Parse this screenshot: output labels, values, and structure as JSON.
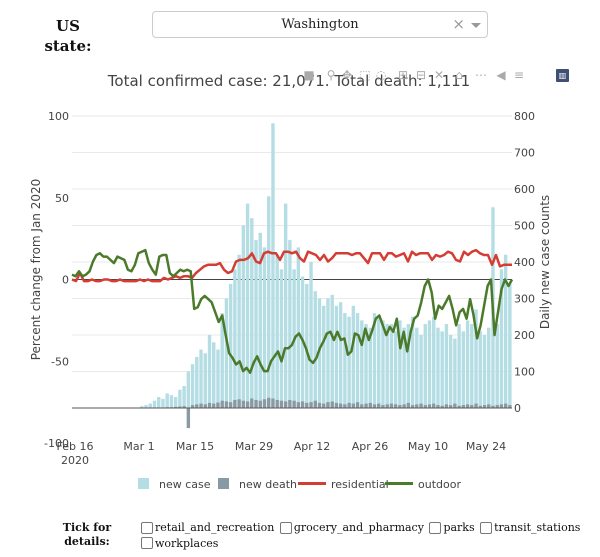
{
  "controls": {
    "state_label": "US state:",
    "state_value": "Washington",
    "clear_glyph": "×"
  },
  "chart_title": "Total confirmed case: 21,071. Total death: 1,111",
  "modebar": {
    "icons": [
      "camera-icon",
      "zoom-icon",
      "pan-icon",
      "box-select-icon",
      "lasso-icon",
      "zoom-in-icon",
      "zoom-out-icon",
      "autoscale-icon",
      "reset-axes-icon",
      "spike-lines-icon",
      "hover-closest-icon",
      "hover-compare-icon",
      "plotly-logo-icon"
    ]
  },
  "legend": {
    "new_case": "new case",
    "new_death": "new death",
    "residential": "residential",
    "outdoor": "outdoor"
  },
  "details": {
    "label": "Tick for details:",
    "options": [
      "retail_and_recreation",
      "grocery_and_pharmacy",
      "parks",
      "transit_stations",
      "workplaces"
    ]
  },
  "colors": {
    "case_bar": "#b4dde4",
    "death_bar": "#8a9aa5",
    "residential": "#d43d33",
    "outdoor": "#4c7a2b"
  },
  "chart_data": {
    "type": "bar+line",
    "x_start": "2020-02-15",
    "x_ticks": [
      "Feb 16\n2020",
      "Mar 1",
      "Mar 15",
      "Mar 29",
      "Apr 12",
      "Apr 26",
      "May 10",
      "May 24"
    ],
    "yleft": {
      "label": "Percent change from Jan 2020",
      "range": [
        -100,
        100
      ],
      "ticks": [
        -100,
        -50,
        0,
        50,
        100
      ]
    },
    "yright": {
      "label": "Daily new case counts",
      "range": [
        0,
        800
      ],
      "ticks": [
        0,
        100,
        200,
        300,
        400,
        500,
        600,
        700,
        800
      ]
    },
    "new_case": [
      0,
      0,
      0,
      0,
      0,
      0,
      0,
      0,
      0,
      0,
      0,
      0,
      0,
      0,
      0,
      0,
      5,
      8,
      12,
      20,
      30,
      25,
      40,
      35,
      30,
      50,
      60,
      100,
      120,
      140,
      160,
      150,
      200,
      180,
      160,
      260,
      300,
      340,
      380,
      420,
      500,
      560,
      520,
      460,
      480,
      440,
      580,
      780,
      420,
      380,
      560,
      460,
      380,
      440,
      360,
      340,
      400,
      320,
      300,
      280,
      300,
      310,
      280,
      290,
      260,
      250,
      280,
      260,
      240,
      230,
      220,
      260,
      250,
      240,
      230,
      230,
      210,
      240,
      220,
      230,
      250,
      220,
      200,
      230,
      240,
      250,
      220,
      210,
      230,
      200,
      190,
      230,
      210,
      240,
      230,
      270,
      210,
      200,
      220,
      550,
      230,
      380,
      420,
      340
    ],
    "new_death": [
      0,
      0,
      0,
      0,
      0,
      0,
      0,
      0,
      0,
      0,
      0,
      0,
      0,
      0,
      0,
      0,
      0,
      0,
      0,
      0,
      0,
      1,
      2,
      2,
      3,
      4,
      5,
      -55,
      8,
      10,
      12,
      10,
      14,
      12,
      15,
      20,
      18,
      16,
      22,
      24,
      20,
      18,
      26,
      22,
      20,
      24,
      28,
      26,
      22,
      20,
      18,
      22,
      20,
      16,
      18,
      14,
      16,
      20,
      14,
      12,
      16,
      18,
      14,
      12,
      10,
      14,
      12,
      16,
      10,
      12,
      14,
      10,
      12,
      8,
      10,
      12,
      10,
      8,
      10,
      14,
      8,
      10,
      12,
      8,
      10,
      12,
      8,
      6,
      10,
      8,
      12,
      6,
      8,
      10,
      8,
      12,
      6,
      8,
      10,
      6,
      8,
      10,
      12,
      8
    ],
    "residential": [
      0,
      -1,
      4,
      -1,
      -1,
      0,
      -1,
      -1,
      0,
      0,
      -1,
      -1,
      0,
      -1,
      -1,
      -1,
      -1,
      0,
      -1,
      0,
      -1,
      -1,
      -1,
      1,
      0,
      1,
      2,
      1,
      2,
      2,
      1,
      4,
      6,
      8,
      9,
      9,
      9,
      10,
      6,
      4,
      5,
      11,
      12,
      12,
      13,
      16,
      11,
      10,
      16,
      17,
      16,
      16,
      12,
      17,
      17,
      16,
      17,
      13,
      11,
      17,
      16,
      15,
      12,
      15,
      11,
      13,
      16,
      16,
      16,
      16,
      15,
      16,
      16,
      13,
      10,
      16,
      16,
      16,
      12,
      16,
      16,
      14,
      15,
      16,
      11,
      17,
      15,
      16,
      16,
      16,
      12,
      15,
      14,
      15,
      17,
      16,
      12,
      11,
      17,
      15,
      17,
      18,
      16,
      15,
      15,
      9,
      15,
      8,
      9,
      9,
      9
    ],
    "outdoor": [
      3,
      2,
      5,
      2,
      3,
      5,
      11,
      15,
      16,
      14,
      14,
      12,
      10,
      14,
      13,
      12,
      6,
      5,
      9,
      16,
      17,
      18,
      10,
      6,
      3,
      14,
      15,
      15,
      4,
      2,
      4,
      6,
      5,
      6,
      5,
      -18,
      -17,
      -12,
      -10,
      -12,
      -14,
      -20,
      -26,
      -22,
      -34,
      -45,
      -48,
      -52,
      -50,
      -56,
      -54,
      -57,
      -51,
      -47,
      -52,
      -56,
      -56,
      -50,
      -47,
      -44,
      -50,
      -42,
      -42,
      -40,
      -35,
      -33,
      -37,
      -42,
      -49,
      -51,
      -48,
      -42,
      -38,
      -33,
      -32,
      -37,
      -32,
      -37,
      -36,
      -46,
      -44,
      -33,
      -34,
      -40,
      -30,
      -37,
      -31,
      -24,
      -22,
      -28,
      -34,
      -29,
      -32,
      -24,
      -42,
      -32,
      -44,
      -32,
      -24,
      -22,
      -14,
      -4,
      0,
      -8,
      -24,
      -16,
      -18,
      -14,
      -10,
      -18,
      -28,
      -20,
      -18,
      -24,
      -12,
      -22,
      -36,
      -28,
      -16,
      -4,
      0,
      -34,
      -20,
      -6,
      0,
      -4,
      0
    ]
  }
}
